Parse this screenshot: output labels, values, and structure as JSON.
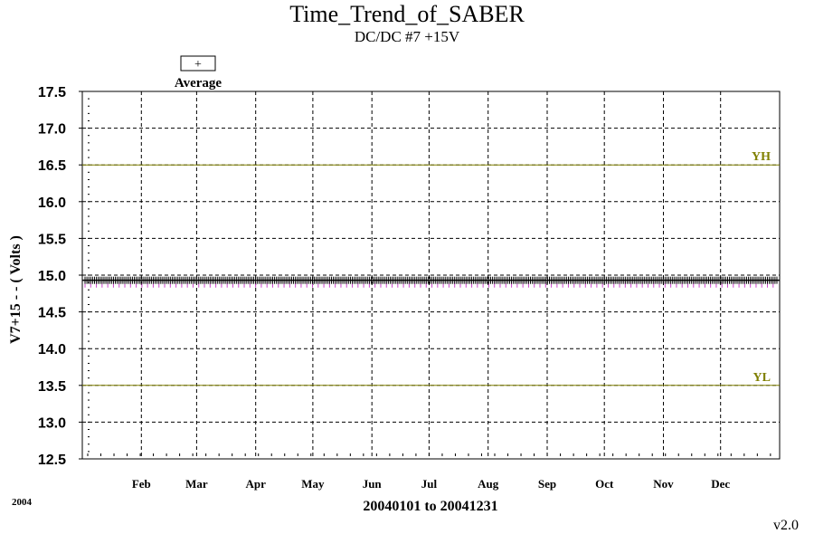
{
  "title": "Time_Trend_of_SABER",
  "subtitle": "DC/DC #7 +15V",
  "legend": {
    "symbol": "+",
    "label": "Average"
  },
  "year_label": "2004",
  "version": "v2.0",
  "colors": {
    "axis": "#000000",
    "grid": "#000000",
    "limit": "#808000",
    "series": "#000000",
    "min_ticks": "#cc44cc"
  },
  "chart_data": {
    "type": "scatter",
    "xlabel": "20040101 to 20041231",
    "ylabel": "V7+15 - - ( Volts )",
    "xlim": [
      "2004-01-01",
      "2004-12-31"
    ],
    "ylim": [
      12.5,
      17.5
    ],
    "ytick_labels": [
      "12.5",
      "13.0",
      "13.5",
      "14.0",
      "14.5",
      "15.0",
      "15.5",
      "16.0",
      "16.5",
      "17.0",
      "17.5"
    ],
    "xtick_labels": [
      {
        "label": "Feb",
        "date": "2004-02-01"
      },
      {
        "label": "Mar",
        "date": "2004-03-01"
      },
      {
        "label": "Apr",
        "date": "2004-04-01"
      },
      {
        "label": "May",
        "date": "2004-05-01"
      },
      {
        "label": "Jun",
        "date": "2004-06-01"
      },
      {
        "label": "Jul",
        "date": "2004-07-01"
      },
      {
        "label": "Aug",
        "date": "2004-08-01"
      },
      {
        "label": "Sep",
        "date": "2004-09-01"
      },
      {
        "label": "Oct",
        "date": "2004-10-01"
      },
      {
        "label": "Nov",
        "date": "2004-11-01"
      },
      {
        "label": "Dec",
        "date": "2004-12-01"
      }
    ],
    "grid": true,
    "reference_lines": [
      {
        "label": "YH",
        "y": 16.5
      },
      {
        "label": "YL",
        "y": 13.5
      }
    ],
    "series": [
      {
        "name": "Average",
        "marker": "+",
        "x_range": [
          "2004-01-01",
          "2004-12-31"
        ],
        "y": 14.93
      },
      {
        "name": "",
        "marker": "tick",
        "x_range": [
          "2004-01-01",
          "2004-12-31"
        ],
        "y": 14.88
      }
    ]
  }
}
